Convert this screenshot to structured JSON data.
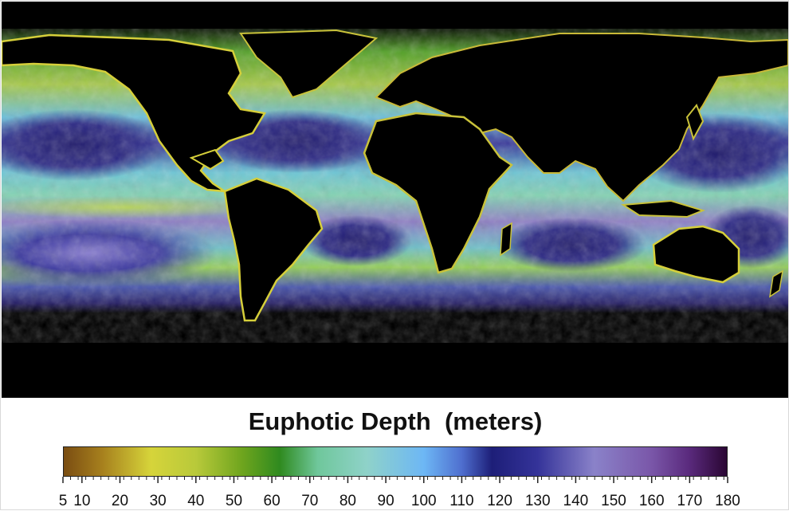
{
  "map": {
    "legend_title": "Euphotic Depth  (meters)",
    "background_color": "#000000",
    "land_color": "#000000"
  },
  "colorbar": {
    "min": 5,
    "max": 180,
    "major_ticks": [
      5,
      10,
      20,
      30,
      40,
      50,
      60,
      70,
      80,
      90,
      100,
      110,
      120,
      130,
      140,
      150,
      160,
      170,
      180
    ],
    "minor_step": 2,
    "stops": [
      {
        "value": 5,
        "color": "#7a4d12"
      },
      {
        "value": 15,
        "color": "#a67f1d"
      },
      {
        "value": 28,
        "color": "#d6d43a"
      },
      {
        "value": 40,
        "color": "#b8c93a"
      },
      {
        "value": 52,
        "color": "#6fa51e"
      },
      {
        "value": 62,
        "color": "#2f8a1f"
      },
      {
        "value": 72,
        "color": "#6fc79b"
      },
      {
        "value": 85,
        "color": "#8fd2c9"
      },
      {
        "value": 100,
        "color": "#6db7f5"
      },
      {
        "value": 110,
        "color": "#4f6fcf"
      },
      {
        "value": 118,
        "color": "#1d1e78"
      },
      {
        "value": 130,
        "color": "#343399"
      },
      {
        "value": 145,
        "color": "#8a82c9"
      },
      {
        "value": 160,
        "color": "#7a57a9"
      },
      {
        "value": 170,
        "color": "#5a2a7d"
      },
      {
        "value": 180,
        "color": "#2a0633"
      }
    ]
  }
}
